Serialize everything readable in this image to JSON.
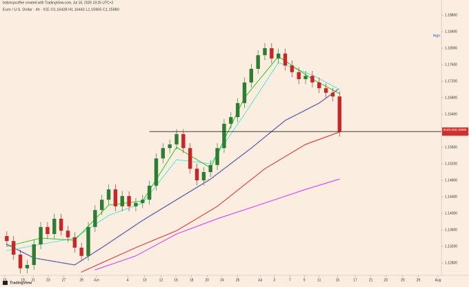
{
  "chart_data": {
    "type": "candlestick",
    "credit": "bobmcpcoffee created with TradingView.com, Jul 16, 2025 19:26 UTC+2",
    "title": "Euro / U.S. Dollar · 4h · ICE  O1.16428 H1.16442 L1.15905 C1.15980",
    "brand": "TradingView",
    "up_color": "#2e7d32",
    "down_color": "#c62828",
    "x": [
      0,
      1,
      2,
      3,
      4,
      5,
      6,
      7,
      8,
      9,
      10,
      11,
      12,
      13,
      14,
      15,
      16,
      17,
      18,
      19,
      20,
      21,
      22,
      23,
      24,
      25,
      26,
      27,
      28,
      29,
      30,
      31,
      32,
      33,
      34,
      35,
      36,
      37,
      38,
      39,
      40,
      41,
      42,
      43,
      44,
      45,
      46,
      47,
      48,
      49
    ],
    "open": [
      1.1345,
      1.1333,
      1.13,
      1.1267,
      1.1275,
      1.1325,
      1.1367,
      1.135,
      1.1387,
      1.1358,
      1.1342,
      1.1317,
      1.1297,
      1.1367,
      1.1408,
      1.1433,
      1.1458,
      1.1417,
      1.1442,
      1.1417,
      1.1425,
      1.1433,
      1.1467,
      1.1533,
      1.1558,
      1.1567,
      1.1592,
      1.1558,
      1.1508,
      1.148,
      1.15,
      1.1517,
      1.1558,
      1.1617,
      1.1633,
      1.1667,
      1.1717,
      1.175,
      1.1783,
      1.18,
      1.1775,
      1.1787,
      1.1758,
      1.1742,
      1.1725,
      1.1733,
      1.1717,
      1.1703,
      1.1692,
      1.1683
    ],
    "high": [
      1.1357,
      1.1345,
      1.1312,
      1.1287,
      1.1337,
      1.1379,
      1.1379,
      1.1399,
      1.1399,
      1.137,
      1.1354,
      1.1329,
      1.1379,
      1.142,
      1.1445,
      1.147,
      1.147,
      1.1454,
      1.1454,
      1.1437,
      1.1445,
      1.1479,
      1.1545,
      1.157,
      1.1579,
      1.1604,
      1.1604,
      1.157,
      1.152,
      1.1512,
      1.1529,
      1.157,
      1.1629,
      1.1645,
      1.1679,
      1.1729,
      1.1762,
      1.1795,
      1.1812,
      1.1812,
      1.1799,
      1.1799,
      1.177,
      1.1754,
      1.1745,
      1.1745,
      1.1729,
      1.1715,
      1.1704,
      1.1695
    ],
    "low": [
      1.1321,
      1.1288,
      1.1255,
      1.1255,
      1.1263,
      1.1313,
      1.1338,
      1.1338,
      1.1346,
      1.133,
      1.1305,
      1.1285,
      1.1285,
      1.1355,
      1.1396,
      1.1421,
      1.1405,
      1.1405,
      1.1405,
      1.1405,
      1.1413,
      1.1421,
      1.1455,
      1.1521,
      1.1546,
      1.1555,
      1.1546,
      1.1496,
      1.1468,
      1.1468,
      1.1488,
      1.1505,
      1.1546,
      1.1605,
      1.1621,
      1.1655,
      1.1705,
      1.1738,
      1.1771,
      1.1763,
      1.1763,
      1.1746,
      1.173,
      1.1713,
      1.1713,
      1.1705,
      1.1691,
      1.168,
      1.1671,
      1.1586
    ],
    "close": [
      1.1333,
      1.13,
      1.1267,
      1.1275,
      1.1325,
      1.1367,
      1.135,
      1.1387,
      1.1358,
      1.1342,
      1.1317,
      1.1297,
      1.1367,
      1.1408,
      1.1433,
      1.1458,
      1.1417,
      1.1442,
      1.1417,
      1.1425,
      1.1433,
      1.1467,
      1.1533,
      1.1558,
      1.1567,
      1.1592,
      1.1558,
      1.1508,
      1.148,
      1.15,
      1.1517,
      1.1558,
      1.1617,
      1.1633,
      1.1667,
      1.1717,
      1.175,
      1.1783,
      1.18,
      1.1775,
      1.1787,
      1.1758,
      1.1742,
      1.1725,
      1.1733,
      1.1717,
      1.1703,
      1.1692,
      1.1683,
      1.1598
    ],
    "lines": [
      {
        "color": "#e040fb",
        "style": "solid",
        "x": [
          13,
          19,
          25,
          31,
          38,
          44,
          49
        ],
        "values": [
          1.1263,
          1.1297,
          1.135,
          1.1387,
          1.1425,
          1.1458,
          1.1483
        ]
      },
      {
        "color": "#e53935",
        "style": "solid",
        "x": [
          11,
          19,
          25,
          31,
          38,
          44,
          49
        ],
        "values": [
          1.1258,
          1.1317,
          1.1358,
          1.1417,
          1.1508,
          1.1567,
          1.1597
        ]
      },
      {
        "color": "#3f3fa0",
        "style": "dotted",
        "x": [
          0,
          4,
          10,
          14,
          20,
          25,
          30,
          36,
          41,
          46,
          49
        ],
        "values": [
          1.1325,
          1.1292,
          1.1275,
          1.1317,
          1.1383,
          1.1433,
          1.1483,
          1.1558,
          1.1625,
          1.1667,
          1.1703
        ]
      },
      {
        "color": "#5ee6d6",
        "style": "solid",
        "x": [
          0,
          5,
          10,
          15,
          20,
          25,
          30,
          35,
          40,
          45,
          49
        ],
        "values": [
          1.131,
          1.1325,
          1.134,
          1.1395,
          1.1425,
          1.153,
          1.152,
          1.164,
          1.1765,
          1.1735,
          1.17
        ]
      },
      {
        "color": "#33cc33",
        "style": "solid",
        "x": [
          0,
          5,
          10,
          15,
          20,
          25,
          30,
          35,
          40,
          45,
          49
        ],
        "values": [
          1.132,
          1.134,
          1.1335,
          1.142,
          1.143,
          1.156,
          1.151,
          1.168,
          1.178,
          1.1725,
          1.169
        ]
      }
    ],
    "hline": {
      "value": 1.1598,
      "start": 21
    },
    "symbol_badge": "EURUSD",
    "last_price_label": "1.15980",
    "high_marker": {
      "value": 1.183,
      "label": "High"
    },
    "xlim": [
      -1,
      64
    ],
    "ylim": [
      1.125,
      1.19
    ],
    "xticks": [
      {
        "value": -0.3,
        "label": "15"
      },
      {
        "value": 2.35,
        "label": "19"
      },
      {
        "value": 3.9,
        "label": "21"
      },
      {
        "value": 6.1,
        "label": "23"
      },
      {
        "value": 8.4,
        "label": "27"
      },
      {
        "value": 11,
        "label": "29"
      },
      {
        "value": 13.2,
        "label": "Jun"
      },
      {
        "value": 17.8,
        "label": "4"
      },
      {
        "value": 20.3,
        "label": "10"
      },
      {
        "value": 22.7,
        "label": "12"
      },
      {
        "value": 24.9,
        "label": "16"
      },
      {
        "value": 27.2,
        "label": "18"
      },
      {
        "value": 29.5,
        "label": "20"
      },
      {
        "value": 31.7,
        "label": "24"
      },
      {
        "value": 34,
        "label": "26"
      },
      {
        "value": 37.3,
        "label": "Jul"
      },
      {
        "value": 39.4,
        "label": "3"
      },
      {
        "value": 41.7,
        "label": "7"
      },
      {
        "value": 43.8,
        "label": "9"
      },
      {
        "value": 46,
        "label": "11"
      },
      {
        "value": 48.7,
        "label": "15"
      },
      {
        "value": 51.3,
        "label": "17"
      },
      {
        "value": 53.6,
        "label": "21"
      },
      {
        "value": 55.8,
        "label": "23"
      },
      {
        "value": 58.3,
        "label": "25"
      },
      {
        "value": 60.6,
        "label": "29"
      },
      {
        "value": 63.5,
        "label": "Aug"
      }
    ],
    "yticks": [
      {
        "value": 1.128,
        "label": "1.12800"
      },
      {
        "value": 1.132,
        "label": "1.13200"
      },
      {
        "value": 1.136,
        "label": "1.13600"
      },
      {
        "value": 1.14,
        "label": "1.14000"
      },
      {
        "value": 1.144,
        "label": "1.14400"
      },
      {
        "value": 1.148,
        "label": "1.14800"
      },
      {
        "value": 1.152,
        "label": "1.15200"
      },
      {
        "value": 1.156,
        "label": "1.15600"
      },
      {
        "value": 1.164,
        "label": "1.16400"
      },
      {
        "value": 1.168,
        "label": "1.16800"
      },
      {
        "value": 1.172,
        "label": "1.17200"
      },
      {
        "value": 1.176,
        "label": "1.17600"
      },
      {
        "value": 1.18,
        "label": "1.18000"
      },
      {
        "value": 1.184,
        "label": "1.18400"
      },
      {
        "value": 1.188,
        "label": "1.18800"
      }
    ]
  }
}
